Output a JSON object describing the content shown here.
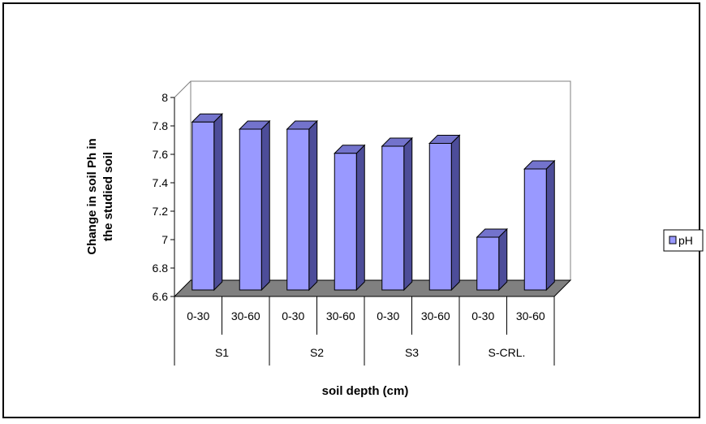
{
  "chart_data": {
    "type": "bar",
    "style": "3d-column",
    "categories": [
      "0-30",
      "30-60",
      "0-30",
      "30-60",
      "0-30",
      "30-60",
      "0-30",
      "30-60"
    ],
    "groups": [
      "S1",
      "S2",
      "S3",
      "S-CRL."
    ],
    "series": [
      {
        "name": "pH",
        "values": [
          7.85,
          7.8,
          7.8,
          7.63,
          7.68,
          7.7,
          7.04,
          7.52
        ],
        "color": "#9999ff"
      }
    ],
    "xlabel": "soil depth (cm)",
    "ylabel_lines": [
      "Change in soil Ph in",
      "the studied soil"
    ],
    "ylim": [
      6.6,
      8.0
    ],
    "yticks": [
      "6.6",
      "6.8",
      "7",
      "7.2",
      "7.4",
      "7.6",
      "7.8",
      "8"
    ],
    "legend_position": "right",
    "grid": false,
    "floor_color": "#808080"
  }
}
